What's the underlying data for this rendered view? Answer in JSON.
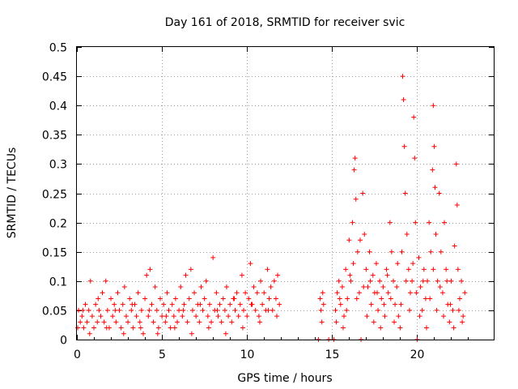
{
  "chart_data": {
    "type": "scatter",
    "title": "Day 161 of 2018, SRMTID for receiver svic",
    "xlabel": "GPS time / hours",
    "ylabel": "SRMTID / TECUs",
    "xlim": [
      0,
      24.5
    ],
    "ylim": [
      0,
      0.5
    ],
    "xticks": [
      0,
      5,
      10,
      15,
      20
    ],
    "xtick_labels": [
      "0",
      "5",
      "10",
      "15",
      "20"
    ],
    "yticks": [
      0,
      0.05,
      0.1,
      0.15,
      0.2,
      0.25,
      0.3,
      0.35,
      0.4,
      0.45,
      0.5
    ],
    "ytick_labels": [
      "0",
      "0.05",
      "0.1",
      "0.15",
      "0.2",
      "0.25",
      "0.3",
      "0.35",
      "0.4",
      "0.45",
      "0.5"
    ],
    "grid": true,
    "marker": "+",
    "color": "#ff0000",
    "series": [
      {
        "name": "SRMTID",
        "points": [
          [
            0.1,
            0.05
          ],
          [
            0.2,
            0.03
          ],
          [
            0.3,
            0.04
          ],
          [
            0.4,
            0.02
          ],
          [
            0.5,
            0.06
          ],
          [
            0.6,
            0.03
          ],
          [
            0.7,
            0.05
          ],
          [
            0.8,
            0.1
          ],
          [
            0.9,
            0.04
          ],
          [
            1.0,
            0.02
          ],
          [
            1.1,
            0.06
          ],
          [
            1.2,
            0.03
          ],
          [
            1.3,
            0.05
          ],
          [
            1.4,
            0.04
          ],
          [
            1.5,
            0.08
          ],
          [
            1.6,
            0.03
          ],
          [
            1.7,
            0.1
          ],
          [
            1.8,
            0.05
          ],
          [
            1.9,
            0.02
          ],
          [
            2.0,
            0.07
          ],
          [
            2.1,
            0.04
          ],
          [
            2.2,
            0.06
          ],
          [
            2.3,
            0.03
          ],
          [
            2.4,
            0.08
          ],
          [
            2.5,
            0.05
          ],
          [
            2.6,
            0.02
          ],
          [
            2.7,
            0.06
          ],
          [
            2.8,
            0.09
          ],
          [
            2.9,
            0.04
          ],
          [
            3.0,
            0.03
          ],
          [
            3.1,
            0.07
          ],
          [
            3.2,
            0.05
          ],
          [
            3.3,
            0.02
          ],
          [
            3.4,
            0.06
          ],
          [
            3.5,
            0.04
          ],
          [
            3.6,
            0.08
          ],
          [
            3.7,
            0.03
          ],
          [
            3.8,
            0.05
          ],
          [
            3.9,
            0.01
          ],
          [
            4.0,
            0.07
          ],
          [
            4.1,
            0.11
          ],
          [
            4.2,
            0.04
          ],
          [
            4.3,
            0.12
          ],
          [
            4.4,
            0.06
          ],
          [
            4.5,
            0.03
          ],
          [
            4.6,
            0.09
          ],
          [
            4.7,
            0.05
          ],
          [
            4.8,
            0.02
          ],
          [
            4.9,
            0.07
          ],
          [
            5.0,
            0.04
          ],
          [
            5.1,
            0.06
          ],
          [
            5.2,
            0.03
          ],
          [
            5.3,
            0.08
          ],
          [
            5.4,
            0.05
          ],
          [
            5.5,
            0.02
          ],
          [
            5.6,
            0.06
          ],
          [
            5.7,
            0.04
          ],
          [
            5.8,
            0.07
          ],
          [
            5.9,
            0.03
          ],
          [
            6.0,
            0.05
          ],
          [
            6.1,
            0.09
          ],
          [
            6.2,
            0.04
          ],
          [
            6.3,
            0.06
          ],
          [
            6.4,
            0.11
          ],
          [
            6.5,
            0.03
          ],
          [
            6.6,
            0.07
          ],
          [
            6.7,
            0.12
          ],
          [
            6.8,
            0.05
          ],
          [
            6.9,
            0.08
          ],
          [
            7.0,
            0.04
          ],
          [
            7.1,
            0.06
          ],
          [
            7.2,
            0.03
          ],
          [
            7.3,
            0.09
          ],
          [
            7.4,
            0.05
          ],
          [
            7.5,
            0.07
          ],
          [
            7.6,
            0.1
          ],
          [
            7.7,
            0.04
          ],
          [
            7.8,
            0.06
          ],
          [
            7.9,
            0.03
          ],
          [
            8.0,
            0.14
          ],
          [
            8.1,
            0.05
          ],
          [
            8.2,
            0.08
          ],
          [
            8.3,
            0.04
          ],
          [
            8.4,
            0.06
          ],
          [
            8.5,
            0.03
          ],
          [
            8.6,
            0.07
          ],
          [
            8.7,
            0.05
          ],
          [
            8.8,
            0.09
          ],
          [
            8.9,
            0.04
          ],
          [
            9.0,
            0.06
          ],
          [
            9.1,
            0.03
          ],
          [
            9.2,
            0.07
          ],
          [
            9.3,
            0.05
          ],
          [
            9.4,
            0.08
          ],
          [
            9.5,
            0.04
          ],
          [
            9.6,
            0.06
          ],
          [
            9.7,
            0.11
          ],
          [
            9.8,
            0.05
          ],
          [
            9.9,
            0.08
          ],
          [
            10.0,
            0.04
          ],
          [
            10.1,
            0.07
          ],
          [
            10.2,
            0.13
          ],
          [
            10.3,
            0.06
          ],
          [
            10.4,
            0.09
          ],
          [
            10.5,
            0.05
          ],
          [
            10.6,
            0.08
          ],
          [
            10.7,
            0.04
          ],
          [
            10.8,
            0.1
          ],
          [
            10.9,
            0.06
          ],
          [
            11.0,
            0.08
          ],
          [
            11.1,
            0.05
          ],
          [
            11.2,
            0.12
          ],
          [
            11.3,
            0.07
          ],
          [
            11.4,
            0.09
          ],
          [
            11.5,
            0.05
          ],
          [
            11.6,
            0.1
          ],
          [
            11.7,
            0.07
          ],
          [
            11.8,
            0.11
          ],
          [
            11.9,
            0.06
          ],
          [
            0.05,
            0.02
          ],
          [
            0.35,
            0.05
          ],
          [
            0.75,
            0.01
          ],
          [
            1.25,
            0.07
          ],
          [
            1.75,
            0.02
          ],
          [
            2.25,
            0.05
          ],
          [
            2.75,
            0.01
          ],
          [
            3.25,
            0.06
          ],
          [
            3.75,
            0.02
          ],
          [
            4.25,
            0.05
          ],
          [
            4.75,
            0.01
          ],
          [
            5.25,
            0.04
          ],
          [
            5.75,
            0.02
          ],
          [
            6.25,
            0.05
          ],
          [
            6.75,
            0.01
          ],
          [
            7.25,
            0.06
          ],
          [
            7.75,
            0.02
          ],
          [
            8.25,
            0.05
          ],
          [
            8.75,
            0.01
          ],
          [
            9.25,
            0.07
          ],
          [
            9.75,
            0.02
          ],
          [
            10.25,
            0.06
          ],
          [
            10.75,
            0.03
          ],
          [
            11.25,
            0.05
          ],
          [
            11.75,
            0.04
          ],
          [
            14.2,
            0.0
          ],
          [
            14.3,
            0.07
          ],
          [
            14.35,
            0.05
          ],
          [
            14.4,
            0.03
          ],
          [
            14.45,
            0.08
          ],
          [
            14.5,
            0.06
          ],
          [
            14.8,
            0.0
          ],
          [
            15.1,
            0.0
          ],
          [
            15.2,
            0.05
          ],
          [
            15.3,
            0.08
          ],
          [
            15.4,
            0.1
          ],
          [
            15.5,
            0.06
          ],
          [
            15.6,
            0.09
          ],
          [
            15.7,
            0.04
          ],
          [
            15.8,
            0.12
          ],
          [
            15.9,
            0.07
          ],
          [
            16.0,
            0.17
          ],
          [
            16.1,
            0.1
          ],
          [
            16.2,
            0.2
          ],
          [
            16.3,
            0.29
          ],
          [
            16.35,
            0.31
          ],
          [
            16.4,
            0.24
          ],
          [
            16.5,
            0.15
          ],
          [
            16.6,
            0.08
          ],
          [
            16.7,
            0.0
          ],
          [
            16.8,
            0.25
          ],
          [
            16.9,
            0.18
          ],
          [
            17.0,
            0.12
          ],
          [
            17.1,
            0.09
          ],
          [
            17.2,
            0.15
          ],
          [
            17.3,
            0.06
          ],
          [
            17.4,
            0.11
          ],
          [
            17.5,
            0.08
          ],
          [
            17.6,
            0.13
          ],
          [
            17.7,
            0.05
          ],
          [
            17.8,
            0.1
          ],
          [
            17.9,
            0.07
          ],
          [
            18.0,
            0.09
          ],
          [
            18.1,
            0.04
          ],
          [
            18.2,
            0.12
          ],
          [
            18.3,
            0.08
          ],
          [
            18.4,
            0.2
          ],
          [
            18.5,
            0.15
          ],
          [
            18.6,
            0.1
          ],
          [
            18.7,
            0.06
          ],
          [
            18.8,
            0.09
          ],
          [
            18.9,
            0.04
          ],
          [
            19.0,
            0.02
          ],
          [
            19.1,
            0.15
          ],
          [
            19.15,
            0.45
          ],
          [
            19.2,
            0.41
          ],
          [
            19.25,
            0.33
          ],
          [
            19.3,
            0.25
          ],
          [
            19.4,
            0.18
          ],
          [
            19.5,
            0.12
          ],
          [
            19.6,
            0.08
          ],
          [
            19.7,
            0.1
          ],
          [
            19.8,
            0.38
          ],
          [
            19.85,
            0.31
          ],
          [
            19.9,
            0.2
          ],
          [
            20.0,
            0.0
          ],
          [
            20.1,
            0.14
          ],
          [
            20.2,
            0.09
          ],
          [
            20.3,
            0.05
          ],
          [
            20.4,
            0.12
          ],
          [
            20.5,
            0.07
          ],
          [
            20.6,
            0.1
          ],
          [
            20.7,
            0.2
          ],
          [
            20.8,
            0.15
          ],
          [
            20.9,
            0.29
          ],
          [
            20.95,
            0.4
          ],
          [
            21.0,
            0.33
          ],
          [
            21.05,
            0.26
          ],
          [
            21.1,
            0.18
          ],
          [
            21.2,
            0.1
          ],
          [
            21.3,
            0.25
          ],
          [
            21.4,
            0.15
          ],
          [
            21.5,
            0.08
          ],
          [
            21.6,
            0.2
          ],
          [
            21.7,
            0.12
          ],
          [
            21.8,
            0.06
          ],
          [
            21.9,
            0.03
          ],
          [
            22.0,
            0.1
          ],
          [
            22.1,
            0.05
          ],
          [
            22.2,
            0.16
          ],
          [
            22.3,
            0.3
          ],
          [
            22.35,
            0.23
          ],
          [
            22.4,
            0.12
          ],
          [
            22.5,
            0.07
          ],
          [
            22.6,
            0.1
          ],
          [
            22.7,
            0.04
          ],
          [
            22.8,
            0.08
          ],
          [
            15.25,
            0.03
          ],
          [
            15.45,
            0.07
          ],
          [
            15.65,
            0.02
          ],
          [
            15.85,
            0.05
          ],
          [
            16.05,
            0.11
          ],
          [
            16.25,
            0.13
          ],
          [
            16.45,
            0.07
          ],
          [
            16.65,
            0.17
          ],
          [
            16.85,
            0.09
          ],
          [
            17.05,
            0.04
          ],
          [
            17.25,
            0.1
          ],
          [
            17.45,
            0.03
          ],
          [
            17.65,
            0.08
          ],
          [
            17.85,
            0.02
          ],
          [
            18.05,
            0.06
          ],
          [
            18.25,
            0.11
          ],
          [
            18.45,
            0.07
          ],
          [
            18.65,
            0.03
          ],
          [
            18.85,
            0.13
          ],
          [
            19.05,
            0.06
          ],
          [
            19.35,
            0.1
          ],
          [
            19.55,
            0.05
          ],
          [
            19.75,
            0.13
          ],
          [
            19.95,
            0.08
          ],
          [
            20.15,
            0.04
          ],
          [
            20.35,
            0.1
          ],
          [
            20.55,
            0.02
          ],
          [
            20.75,
            0.07
          ],
          [
            20.95,
            0.12
          ],
          [
            21.15,
            0.05
          ],
          [
            21.35,
            0.09
          ],
          [
            21.55,
            0.04
          ],
          [
            21.75,
            0.1
          ],
          [
            21.95,
            0.06
          ],
          [
            22.15,
            0.02
          ],
          [
            22.45,
            0.05
          ],
          [
            22.65,
            0.03
          ]
        ]
      }
    ]
  }
}
